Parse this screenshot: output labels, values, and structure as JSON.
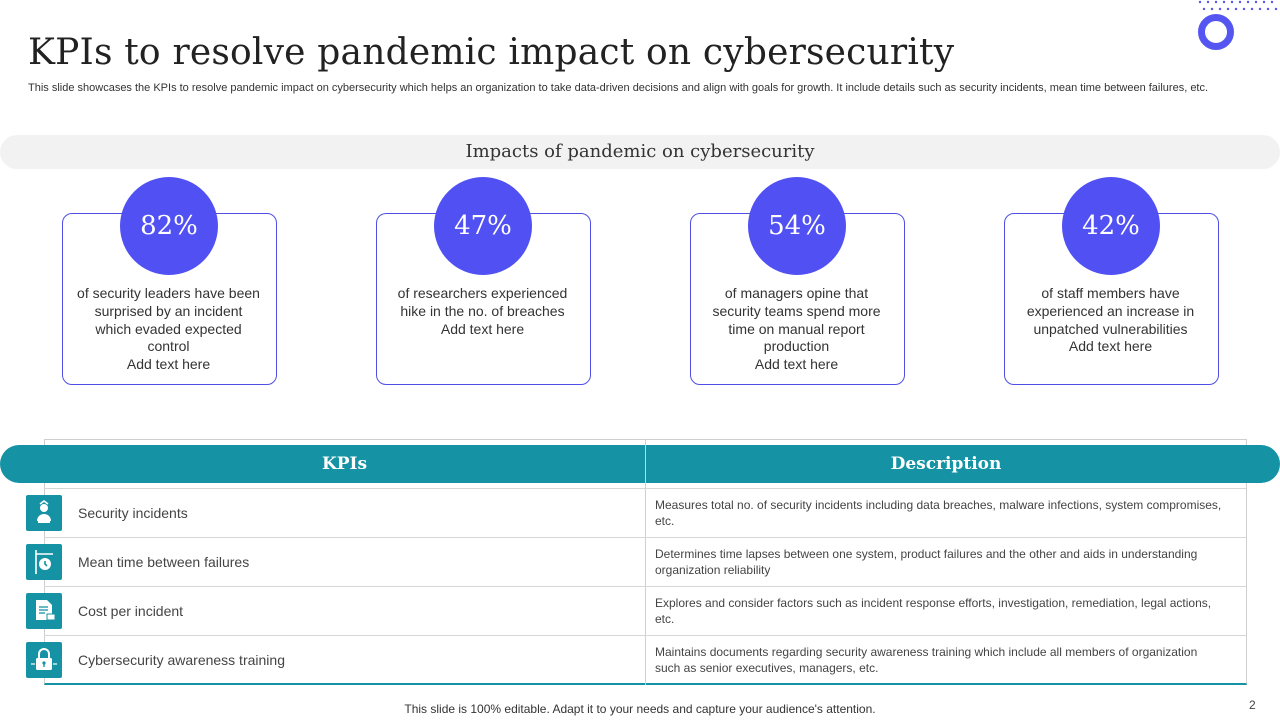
{
  "slide": {
    "title": "KPIs to resolve pandemic impact on cybersecurity",
    "subtitle": "This slide showcases the KPIs to resolve pandemic impact on cybersecurity which helps an organization to take data-driven decisions and align with goals for growth. It include details such as security incidents, mean time between failures, etc.",
    "footer": "This slide is 100% editable. Adapt it to your needs and capture your audience's attention.",
    "page_number": "2"
  },
  "impacts": {
    "heading": "Impacts of pandemic on cybersecurity",
    "cards": [
      {
        "value": "82%",
        "text": "of security leaders have been surprised by an incident which evaded expected control",
        "extra": "Add text here"
      },
      {
        "value": "47%",
        "text": "of researchers experienced hike in the no. of breaches",
        "extra": "Add text here"
      },
      {
        "value": "54%",
        "text": "of managers opine that security teams spend more time on manual report production",
        "extra": "Add text here"
      },
      {
        "value": "42%",
        "text": "of staff members have experienced an increase in unpatched vulnerabilities",
        "extra": "Add text here"
      }
    ]
  },
  "kpi_table": {
    "headers": {
      "kpi": "KPIs",
      "description": "Description"
    },
    "rows": [
      {
        "icon": "hacker-icon",
        "kpi": "Security incidents",
        "description": "Measures total no. of security incidents including data breaches, malware infections, system compromises, etc."
      },
      {
        "icon": "timer-icon",
        "kpi": "Mean time between failures",
        "description": "Determines time lapses between one system, product failures and the other and aids in understanding organization reliability"
      },
      {
        "icon": "invoice-icon",
        "kpi": "Cost per incident",
        "description": "Explores and consider factors such as incident response efforts, investigation, remediation, legal actions, etc."
      },
      {
        "icon": "lock-icon",
        "kpi": "Cybersecurity awareness training",
        "description": "Maintains documents regarding security awareness training which include all members of organization such as senior executives, managers, etc."
      }
    ]
  },
  "colors": {
    "accent": "#5151f3",
    "teal": "#1593a4",
    "band": "#f2f2f2"
  }
}
